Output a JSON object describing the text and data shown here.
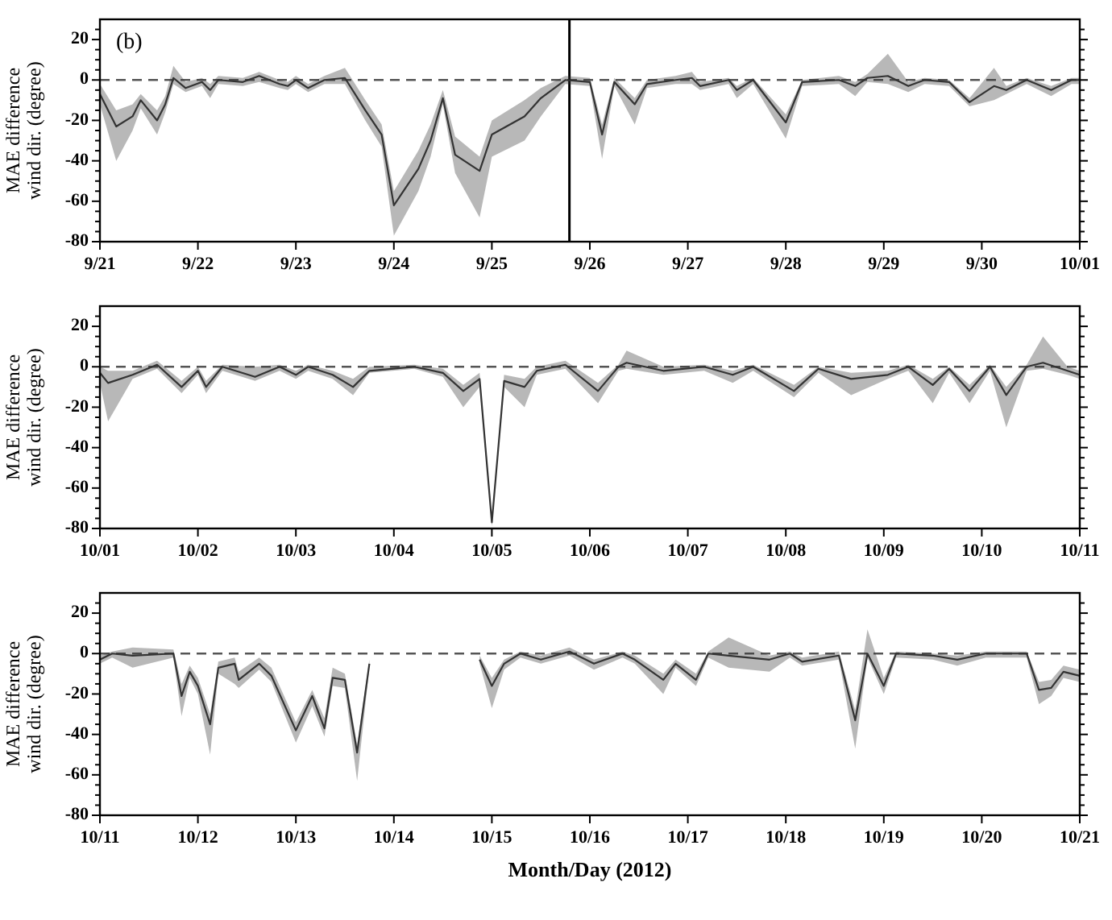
{
  "chart_data": [
    {
      "type": "line",
      "ylabel": "MAE difference wind dir. (degree)",
      "annotations": [
        "(b)"
      ],
      "xlim": [
        "2012-09-21",
        "2012-10-01"
      ],
      "xticks": [
        {
          "value": "2012-09-21",
          "label": "9/21"
        },
        {
          "value": "2012-09-22",
          "label": "9/22"
        },
        {
          "value": "2012-09-23",
          "label": "9/23"
        },
        {
          "value": "2012-09-24",
          "label": "9/24"
        },
        {
          "value": "2012-09-25",
          "label": "9/25"
        },
        {
          "value": "2012-09-26",
          "label": "9/26"
        },
        {
          "value": "2012-09-27",
          "label": "9/27"
        },
        {
          "value": "2012-09-28",
          "label": "9/28"
        },
        {
          "value": "2012-09-29",
          "label": "9/29"
        },
        {
          "value": "2012-09-30",
          "label": "9/30"
        },
        {
          "value": "2012-10-01",
          "label": "10/01"
        }
      ],
      "ylim": [
        -80,
        30
      ],
      "yticks": [
        -80,
        {
          "value": -75,
          "label": null
        },
        {
          "value": -70,
          "label": null
        },
        {
          "value": -65,
          "label": null
        },
        -60,
        {
          "value": -55,
          "label": null
        },
        {
          "value": -50,
          "label": null
        },
        {
          "value": -45,
          "label": null
        },
        -40,
        {
          "value": -35,
          "label": null
        },
        {
          "value": -30,
          "label": null
        },
        {
          "value": -25,
          "label": null
        },
        -20,
        {
          "value": -15,
          "label": null
        },
        {
          "value": -10,
          "label": null
        },
        {
          "value": -5,
          "label": null
        },
        0,
        {
          "value": 5,
          "label": null
        },
        {
          "value": 10,
          "label": null
        },
        {
          "value": 15,
          "label": null
        },
        20,
        {
          "value": 25,
          "label": null
        }
      ],
      "ref_lines": [
        {
          "axis": "y",
          "value": 0,
          "color": "#555555",
          "line_style": "dashed"
        },
        {
          "axis": "x",
          "value": "2012-09-25T19:00",
          "color": "#000000",
          "line_style": "solid"
        }
      ],
      "series": [
        {
          "color": "#333333",
          "x": [
            "2012-09-21T00:00",
            "2012-09-21T04:00",
            "2012-09-21T08:00",
            "2012-09-21T10:00",
            "2012-09-21T14:00",
            "2012-09-21T16:00",
            "2012-09-21T18:00",
            "2012-09-21T21:00",
            "2012-09-22T01:00",
            "2012-09-22T03:00",
            "2012-09-22T05:00",
            "2012-09-22T11:00",
            "2012-09-22T15:00",
            "2012-09-22T20:00",
            "2012-09-22T22:00",
            "2012-09-23T00:00",
            "2012-09-23T03:00",
            "2012-09-23T07:00",
            "2012-09-23T12:00",
            "2012-09-23T17:00",
            "2012-09-23T21:00",
            "2012-09-24T00:00",
            "2012-09-24T06:00",
            "2012-09-24T09:00",
            "2012-09-24T12:00",
            "2012-09-24T15:00",
            "2012-09-24T21:00",
            "2012-09-25T00:00",
            "2012-09-25T08:00",
            "2012-09-25T12:00",
            "2012-09-25T18:00",
            "2012-09-26T00:00",
            "2012-09-26T03:00",
            "2012-09-26T06:00",
            "2012-09-26T11:00",
            "2012-09-26T14:00",
            "2012-09-26T21:00",
            "2012-09-27T01:00",
            "2012-09-27T03:00",
            "2012-09-27T10:00",
            "2012-09-27T12:00",
            "2012-09-27T16:00",
            "2012-09-28T00:00",
            "2012-09-28T04:00",
            "2012-09-28T13:00",
            "2012-09-28T17:00",
            "2012-09-28T20:00",
            "2012-09-29T01:00",
            "2012-09-29T06:00",
            "2012-09-29T10:00",
            "2012-09-29T16:00",
            "2012-09-29T21:00",
            "2012-09-30T03:00",
            "2012-09-30T06:00",
            "2012-09-30T11:00",
            "2012-09-30T17:00",
            "2012-09-30T22:00",
            "2012-10-01T00:00"
          ],
          "values": [
            -7,
            -23,
            -18,
            -10,
            -20,
            -12,
            1,
            -4,
            -1,
            -5,
            0,
            -1,
            2,
            -2,
            -3,
            0,
            -4,
            0,
            1,
            -15,
            -27,
            -62,
            -44,
            -30,
            -9,
            -37,
            -45,
            -27,
            -18,
            -9,
            0,
            -1,
            -27,
            -1,
            -12,
            -2,
            0,
            1,
            -3,
            0,
            -5,
            0,
            -21,
            -1,
            0,
            -3,
            1,
            2,
            -3,
            0,
            -1,
            -11,
            -3,
            -5,
            0,
            -5,
            0,
            0
          ],
          "lower": [
            -12,
            -40,
            -25,
            -14,
            -27,
            -16,
            -2,
            -6,
            -3,
            -9,
            -2,
            -3,
            -1,
            -4,
            -5,
            -2,
            -6,
            -2,
            -2,
            -20,
            -33,
            -77,
            -55,
            -38,
            -12,
            -46,
            -68,
            -38,
            -30,
            -18,
            -2,
            -3,
            -39,
            -3,
            -22,
            -4,
            -2,
            -2,
            -5,
            -2,
            -9,
            -2,
            -29,
            -3,
            -2,
            -8,
            -1,
            -2,
            -6,
            -2,
            -3,
            -13,
            -10,
            -7,
            -2,
            -8,
            -2,
            -2
          ],
          "upper": [
            -2,
            -15,
            -12,
            -7,
            -15,
            -8,
            7,
            -1,
            1,
            -2,
            2,
            1,
            4,
            0,
            -1,
            2,
            -2,
            2,
            6,
            -10,
            -22,
            -55,
            -35,
            -22,
            -5,
            -28,
            -38,
            -20,
            -10,
            -4,
            2,
            1,
            -22,
            1,
            -9,
            0,
            2,
            4,
            -1,
            1,
            -3,
            1,
            -17,
            0,
            2,
            -1,
            3,
            13,
            -1,
            1,
            0,
            -9,
            6,
            -3,
            1,
            -3,
            1,
            1
          ]
        }
      ]
    },
    {
      "type": "line",
      "ylabel": "MAE difference wind dir. (degree)",
      "xlim": [
        "2012-10-01",
        "2012-10-11"
      ],
      "xticks": [
        {
          "value": "2012-10-01",
          "label": "10/01"
        },
        {
          "value": "2012-10-02",
          "label": "10/02"
        },
        {
          "value": "2012-10-03",
          "label": "10/03"
        },
        {
          "value": "2012-10-04",
          "label": "10/04"
        },
        {
          "value": "2012-10-05",
          "label": "10/05"
        },
        {
          "value": "2012-10-06",
          "label": "10/06"
        },
        {
          "value": "2012-10-07",
          "label": "10/07"
        },
        {
          "value": "2012-10-08",
          "label": "10/08"
        },
        {
          "value": "2012-10-09",
          "label": "10/09"
        },
        {
          "value": "2012-10-10",
          "label": "10/10"
        },
        {
          "value": "2012-10-11",
          "label": "10/11"
        }
      ],
      "ylim": [
        -80,
        30
      ],
      "yticks": [
        -80,
        {
          "value": -75,
          "label": null
        },
        {
          "value": -70,
          "label": null
        },
        {
          "value": -65,
          "label": null
        },
        -60,
        {
          "value": -55,
          "label": null
        },
        {
          "value": -50,
          "label": null
        },
        {
          "value": -45,
          "label": null
        },
        -40,
        {
          "value": -35,
          "label": null
        },
        {
          "value": -30,
          "label": null
        },
        {
          "value": -25,
          "label": null
        },
        -20,
        {
          "value": -15,
          "label": null
        },
        {
          "value": -10,
          "label": null
        },
        {
          "value": -5,
          "label": null
        },
        0,
        {
          "value": 5,
          "label": null
        },
        {
          "value": 10,
          "label": null
        },
        {
          "value": 15,
          "label": null
        },
        20,
        {
          "value": 25,
          "label": null
        }
      ],
      "ref_lines": [
        {
          "axis": "y",
          "value": 0,
          "color": "#555555",
          "line_style": "dashed"
        }
      ],
      "series": [
        {
          "color": "#333333",
          "x": [
            "2012-10-01T00:00",
            "2012-10-01T02:00",
            "2012-10-01T08:00",
            "2012-10-01T14:00",
            "2012-10-01T20:00",
            "2012-10-02T00:00",
            "2012-10-02T02:00",
            "2012-10-02T06:00",
            "2012-10-02T14:00",
            "2012-10-02T20:00",
            "2012-10-03T00:00",
            "2012-10-03T03:00",
            "2012-10-03T09:00",
            "2012-10-03T14:00",
            "2012-10-03T18:00",
            "2012-10-04T05:00",
            "2012-10-04T12:00",
            "2012-10-04T17:00",
            "2012-10-04T21:00",
            "2012-10-05T00:00",
            "2012-10-05T03:00",
            "2012-10-05T08:00",
            "2012-10-05T11:00",
            "2012-10-05T18:00",
            "2012-10-06T02:00",
            "2012-10-06T07:00",
            "2012-10-06T09:00",
            "2012-10-06T18:00",
            "2012-10-07T04:00",
            "2012-10-07T11:00",
            "2012-10-07T16:00",
            "2012-10-08T02:00",
            "2012-10-08T08:00",
            "2012-10-08T16:00",
            "2012-10-09T01:00",
            "2012-10-09T06:00",
            "2012-10-09T12:00",
            "2012-10-09T16:00",
            "2012-10-09T21:00",
            "2012-10-10T02:00",
            "2012-10-10T06:00",
            "2012-10-10T11:00",
            "2012-10-10T15:00",
            "2012-10-10T21:00",
            "2012-10-11T00:00"
          ],
          "values": [
            -3,
            -8,
            -4,
            1,
            -10,
            -2,
            -10,
            0,
            -5,
            0,
            -4,
            0,
            -4,
            -10,
            -2,
            0,
            -3,
            -12,
            -6,
            -77,
            -7,
            -10,
            -2,
            1,
            -12,
            0,
            2,
            -2,
            0,
            -4,
            0,
            -12,
            -1,
            -6,
            -4,
            0,
            -9,
            -1,
            -12,
            0,
            -14,
            0,
            2,
            -2,
            -4
          ],
          "lower": [
            -8,
            -27,
            -6,
            -1,
            -13,
            -4,
            -13,
            -2,
            -7,
            -2,
            -6,
            -2,
            -6,
            -14,
            -3,
            -1,
            -5,
            -20,
            -10,
            -79,
            -10,
            -20,
            -4,
            -1,
            -18,
            -2,
            -1,
            -4,
            -2,
            -8,
            -2,
            -15,
            -3,
            -14,
            -6,
            -2,
            -18,
            -3,
            -18,
            -2,
            -30,
            -2,
            -1,
            -4,
            -6
          ],
          "upper": [
            0,
            -2,
            -2,
            3,
            -7,
            0,
            -7,
            1,
            0,
            1,
            -2,
            1,
            -2,
            -6,
            0,
            1,
            -1,
            -9,
            -3,
            -74,
            -4,
            -6,
            0,
            3,
            -8,
            1,
            8,
            0,
            1,
            -2,
            1,
            -9,
            0,
            -3,
            -2,
            1,
            -6,
            0,
            -9,
            1,
            -10,
            1,
            15,
            0,
            -2
          ]
        }
      ]
    },
    {
      "type": "line",
      "ylabel": "MAE difference wind dir. (degree)",
      "xlabel": "Month/Day (2012)",
      "xlim": [
        "2012-10-11",
        "2012-10-21"
      ],
      "xticks": [
        {
          "value": "2012-10-11",
          "label": "10/11"
        },
        {
          "value": "2012-10-12",
          "label": "10/12"
        },
        {
          "value": "2012-10-13",
          "label": "10/13"
        },
        {
          "value": "2012-10-14",
          "label": "10/14"
        },
        {
          "value": "2012-10-15",
          "label": "10/15"
        },
        {
          "value": "2012-10-16",
          "label": "10/16"
        },
        {
          "value": "2012-10-17",
          "label": "10/17"
        },
        {
          "value": "2012-10-18",
          "label": "10/18"
        },
        {
          "value": "2012-10-19",
          "label": "10/19"
        },
        {
          "value": "2012-10-20",
          "label": "10/20"
        },
        {
          "value": "2012-10-21",
          "label": "10/21"
        }
      ],
      "ylim": [
        -80,
        30
      ],
      "yticks": [
        -80,
        {
          "value": -75,
          "label": null
        },
        {
          "value": -70,
          "label": null
        },
        {
          "value": -65,
          "label": null
        },
        -60,
        {
          "value": -55,
          "label": null
        },
        {
          "value": -50,
          "label": null
        },
        {
          "value": -45,
          "label": null
        },
        -40,
        {
          "value": -35,
          "label": null
        },
        {
          "value": -30,
          "label": null
        },
        {
          "value": -25,
          "label": null
        },
        -20,
        {
          "value": -15,
          "label": null
        },
        {
          "value": -10,
          "label": null
        },
        {
          "value": -5,
          "label": null
        },
        0,
        {
          "value": 5,
          "label": null
        },
        {
          "value": 10,
          "label": null
        },
        {
          "value": 15,
          "label": null
        },
        20,
        {
          "value": 25,
          "label": null
        }
      ],
      "ref_lines": [
        {
          "axis": "y",
          "value": 0,
          "color": "#555555",
          "line_style": "dashed"
        }
      ],
      "series": [
        {
          "color": "#333333",
          "x": [
            "2012-10-11T00:00",
            "2012-10-11T03:00",
            "2012-10-11T08:00",
            "2012-10-11T18:00",
            "2012-10-11T20:00",
            "2012-10-11T22:00",
            "2012-10-12T00:00",
            "2012-10-12T03:00",
            "2012-10-12T05:00",
            "2012-10-12T09:00",
            "2012-10-12T10:00",
            "2012-10-12T15:00",
            "2012-10-12T18:00",
            "2012-10-13T00:00",
            "2012-10-13T04:00",
            "2012-10-13T07:00",
            "2012-10-13T09:00",
            "2012-10-13T12:00",
            "2012-10-13T15:00",
            "2012-10-13T18:00",
            "2012-10-14T12:00",
            "2012-10-14T21:00",
            "2012-10-15T00:00",
            "2012-10-15T03:00",
            "2012-10-15T07:00",
            "2012-10-15T12:00",
            "2012-10-15T19:00",
            "2012-10-16T01:00",
            "2012-10-16T08:00",
            "2012-10-16T11:00",
            "2012-10-16T18:00",
            "2012-10-16T21:00",
            "2012-10-17T02:00",
            "2012-10-17T05:00",
            "2012-10-17T10:00",
            "2012-10-17T20:00",
            "2012-10-18T01:00",
            "2012-10-18T04:00",
            "2012-10-18T13:00",
            "2012-10-18T17:00",
            "2012-10-18T20:00",
            "2012-10-19T00:00",
            "2012-10-19T03:00",
            "2012-10-19T12:00",
            "2012-10-19T18:00",
            "2012-10-20T01:00",
            "2012-10-20T11:00",
            "2012-10-20T14:00",
            "2012-10-20T17:00",
            "2012-10-20T20:00",
            "2012-10-21T00:00"
          ],
          "values": [
            -3,
            0,
            -1,
            0,
            -21,
            -9,
            -16,
            -35,
            -7,
            -5,
            -13,
            -5,
            -11,
            -38,
            -21,
            -37,
            -12,
            -13,
            -49,
            -5,
            null,
            -3,
            -16,
            -5,
            0,
            -3,
            1,
            -5,
            0,
            -3,
            -13,
            -5,
            -13,
            0,
            -1,
            -3,
            0,
            -4,
            -1,
            -33,
            0,
            -16,
            0,
            -1,
            -3,
            0,
            0,
            -18,
            -17,
            -9,
            -11
          ],
          "lower": [
            -5,
            -2,
            -7,
            -2,
            -31,
            -12,
            -20,
            -50,
            -10,
            -15,
            -17,
            -8,
            -14,
            -44,
            -26,
            -41,
            -16,
            -17,
            -63,
            -7,
            null,
            -5,
            -27,
            -8,
            -2,
            -5,
            -1,
            -8,
            -2,
            -5,
            -20,
            -7,
            -16,
            -2,
            -7,
            -9,
            -2,
            -6,
            -3,
            -47,
            -2,
            -20,
            -2,
            -3,
            -6,
            -2,
            -2,
            -25,
            -21,
            -12,
            -14
          ],
          "upper": [
            -1,
            1,
            3,
            2,
            -15,
            -6,
            -12,
            -30,
            -4,
            -2,
            -9,
            -2,
            -7,
            -34,
            -18,
            -32,
            -7,
            -10,
            -45,
            -3,
            null,
            -1,
            -12,
            -3,
            1,
            -1,
            3,
            -3,
            1,
            -1,
            -10,
            -3,
            -10,
            1,
            8,
            -1,
            1,
            -2,
            1,
            -28,
            12,
            -12,
            1,
            0,
            -1,
            1,
            1,
            -14,
            -13,
            -6,
            -8
          ]
        }
      ]
    }
  ]
}
